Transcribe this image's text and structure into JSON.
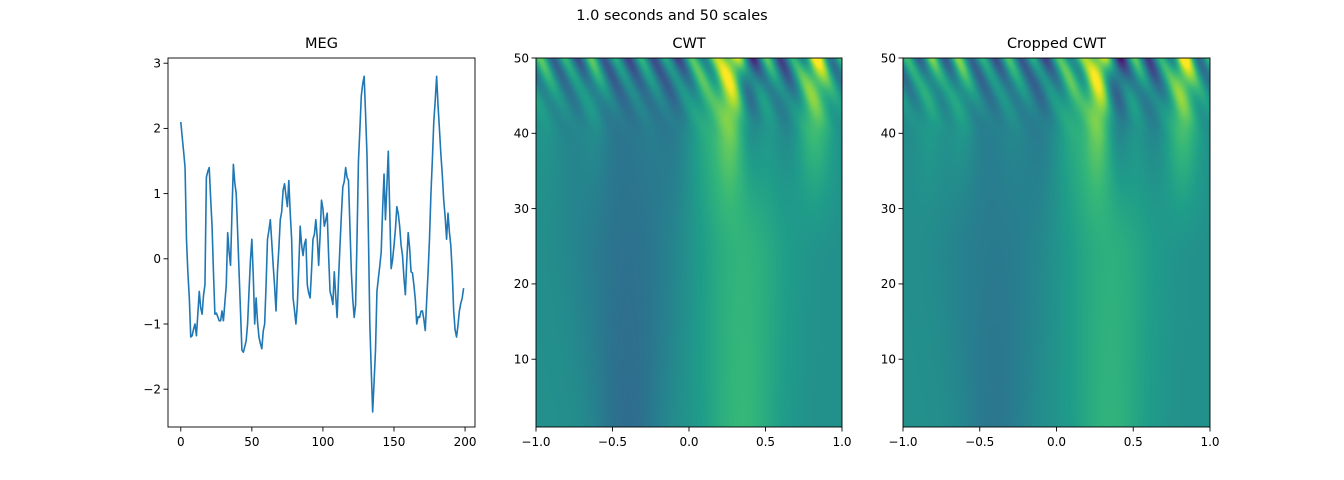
{
  "figure": {
    "suptitle": "1.0 seconds and 50 scales"
  },
  "colors": {
    "line": "#1f77b4",
    "viridis": [
      "#440154",
      "#482878",
      "#3e4a89",
      "#31688e",
      "#26828e",
      "#1f9e89",
      "#35b779",
      "#6ece58",
      "#b5de2b",
      "#fde725"
    ]
  },
  "chart_data": [
    {
      "type": "line",
      "title": "MEG",
      "xlim": [
        -9,
        207
      ],
      "ylim": [
        -2.58,
        3.08
      ],
      "xticks": [
        0,
        50,
        100,
        150,
        200
      ],
      "yticks": [
        -2,
        -1,
        0,
        1,
        2,
        3
      ],
      "x_range": [
        0,
        199
      ],
      "keypoints": [
        [
          0,
          2.1
        ],
        [
          3,
          1.4
        ],
        [
          4,
          0.3
        ],
        [
          6,
          -0.6
        ],
        [
          7,
          -1.2
        ],
        [
          10,
          -1.0
        ],
        [
          11,
          -1.18
        ],
        [
          13,
          -0.5
        ],
        [
          15,
          -0.85
        ],
        [
          17,
          -0.4
        ],
        [
          18,
          1.25
        ],
        [
          20,
          1.4
        ],
        [
          22,
          0.5
        ],
        [
          24,
          -0.85
        ],
        [
          27,
          -0.95
        ],
        [
          29,
          -0.8
        ],
        [
          30,
          -0.95
        ],
        [
          32,
          -0.4
        ],
        [
          33,
          0.4
        ],
        [
          35,
          -0.1
        ],
        [
          37,
          1.45
        ],
        [
          39,
          1.0
        ],
        [
          41,
          -0.2
        ],
        [
          43,
          -1.4
        ],
        [
          45,
          -1.35
        ],
        [
          47,
          -1.0
        ],
        [
          48,
          -0.5
        ],
        [
          50,
          0.3
        ],
        [
          52,
          -1.0
        ],
        [
          53,
          -0.6
        ],
        [
          55,
          -1.2
        ],
        [
          57,
          -1.38
        ],
        [
          59,
          -1.0
        ],
        [
          61,
          0.3
        ],
        [
          63,
          0.6
        ],
        [
          65,
          -0.1
        ],
        [
          67,
          -0.8
        ],
        [
          68,
          -0.2
        ],
        [
          70,
          0.6
        ],
        [
          73,
          1.15
        ],
        [
          75,
          0.8
        ],
        [
          76,
          1.2
        ],
        [
          78,
          0.3
        ],
        [
          79,
          -0.6
        ],
        [
          81,
          -1.0
        ],
        [
          82,
          -0.7
        ],
        [
          84,
          0.5
        ],
        [
          86,
          0.05
        ],
        [
          88,
          0.3
        ],
        [
          89,
          -0.4
        ],
        [
          91,
          -0.6
        ],
        [
          93,
          0.3
        ],
        [
          95,
          0.6
        ],
        [
          97,
          -0.1
        ],
        [
          99,
          0.9
        ],
        [
          101,
          0.5
        ],
        [
          103,
          0.7
        ],
        [
          105,
          -0.5
        ],
        [
          107,
          -0.7
        ],
        [
          108,
          -0.2
        ],
        [
          110,
          -0.9
        ],
        [
          112,
          0.2
        ],
        [
          114,
          1.1
        ],
        [
          116,
          1.4
        ],
        [
          118,
          1.2
        ],
        [
          120,
          -0.2
        ],
        [
          122,
          -0.9
        ],
        [
          123,
          -0.7
        ],
        [
          125,
          1.5
        ],
        [
          127,
          2.5
        ],
        [
          129,
          2.8
        ],
        [
          131,
          1.6
        ],
        [
          133,
          -1.0
        ],
        [
          135,
          -2.35
        ],
        [
          137,
          -1.4
        ],
        [
          138,
          -0.5
        ],
        [
          141,
          0.1
        ],
        [
          143,
          1.3
        ],
        [
          144,
          0.6
        ],
        [
          146,
          1.65
        ],
        [
          148,
          -0.15
        ],
        [
          150,
          0.2
        ],
        [
          152,
          0.8
        ],
        [
          154,
          0.5
        ],
        [
          156,
          0.05
        ],
        [
          158,
          -0.55
        ],
        [
          160,
          0.4
        ],
        [
          162,
          -0.2
        ],
        [
          164,
          -0.4
        ],
        [
          166,
          -1.0
        ],
        [
          168,
          -0.9
        ],
        [
          170,
          -0.8
        ],
        [
          172,
          -1.1
        ],
        [
          174,
          -0.2
        ],
        [
          176,
          1.0
        ],
        [
          178,
          2.1
        ],
        [
          180,
          2.8
        ],
        [
          183,
          1.6
        ],
        [
          185,
          0.9
        ],
        [
          187,
          0.3
        ],
        [
          188,
          0.7
        ],
        [
          190,
          0.2
        ],
        [
          192,
          -0.8
        ],
        [
          194,
          -1.2
        ],
        [
          196,
          -0.8
        ],
        [
          198,
          -0.6
        ],
        [
          199,
          -0.45
        ]
      ]
    },
    {
      "type": "heatmap",
      "title": "CWT",
      "xlim": [
        -1.0,
        1.0
      ],
      "ylim": [
        1,
        50
      ],
      "xticks": [
        -1.0,
        -0.5,
        0.0,
        0.5,
        1.0
      ],
      "yticks": [
        10,
        20,
        30,
        40,
        50
      ],
      "colormap": "viridis",
      "blobs": [
        [
          -0.95,
          0.2,
          0.07,
          2.0
        ],
        [
          -0.62,
          0.35,
          0.07,
          2.0
        ],
        [
          -0.3,
          0.1,
          0.07,
          2.0
        ],
        [
          0.28,
          0.95,
          0.08,
          2.4
        ],
        [
          0.4,
          -0.9,
          0.07,
          2.2
        ],
        [
          0.83,
          0.9,
          0.08,
          2.4
        ],
        [
          0.62,
          -0.5,
          0.08,
          2.2
        ],
        [
          -0.1,
          -0.2,
          0.07,
          2.0
        ],
        [
          0.1,
          0.25,
          0.07,
          2.0
        ]
      ],
      "low_band": [
        -0.4,
        -0.35,
        0.22
      ],
      "high_band": [
        0.35,
        0.4,
        0.25
      ]
    },
    {
      "type": "heatmap",
      "title": "Cropped CWT",
      "xlim": [
        -1.0,
        1.0
      ],
      "ylim": [
        1,
        50
      ],
      "xticks": [
        -1.0,
        -0.5,
        0.0,
        0.5,
        1.0
      ],
      "yticks": [
        10,
        20,
        30,
        40,
        50
      ],
      "colormap": "viridis",
      "blobs": [
        [
          -0.82,
          0.35,
          0.06,
          1.7
        ],
        [
          -0.62,
          0.45,
          0.07,
          1.8
        ],
        [
          -0.3,
          0.2,
          0.07,
          1.8
        ],
        [
          0.28,
          1.0,
          0.07,
          2.0
        ],
        [
          0.4,
          -0.95,
          0.07,
          2.0
        ],
        [
          0.83,
          0.95,
          0.07,
          2.0
        ],
        [
          0.62,
          -0.5,
          0.07,
          2.0
        ],
        [
          -0.1,
          -0.25,
          0.06,
          1.8
        ],
        [
          0.1,
          0.3,
          0.06,
          1.8
        ]
      ],
      "low_band": [
        -0.4,
        -0.25,
        0.22
      ],
      "high_band": [
        0.35,
        0.35,
        0.25
      ]
    }
  ]
}
